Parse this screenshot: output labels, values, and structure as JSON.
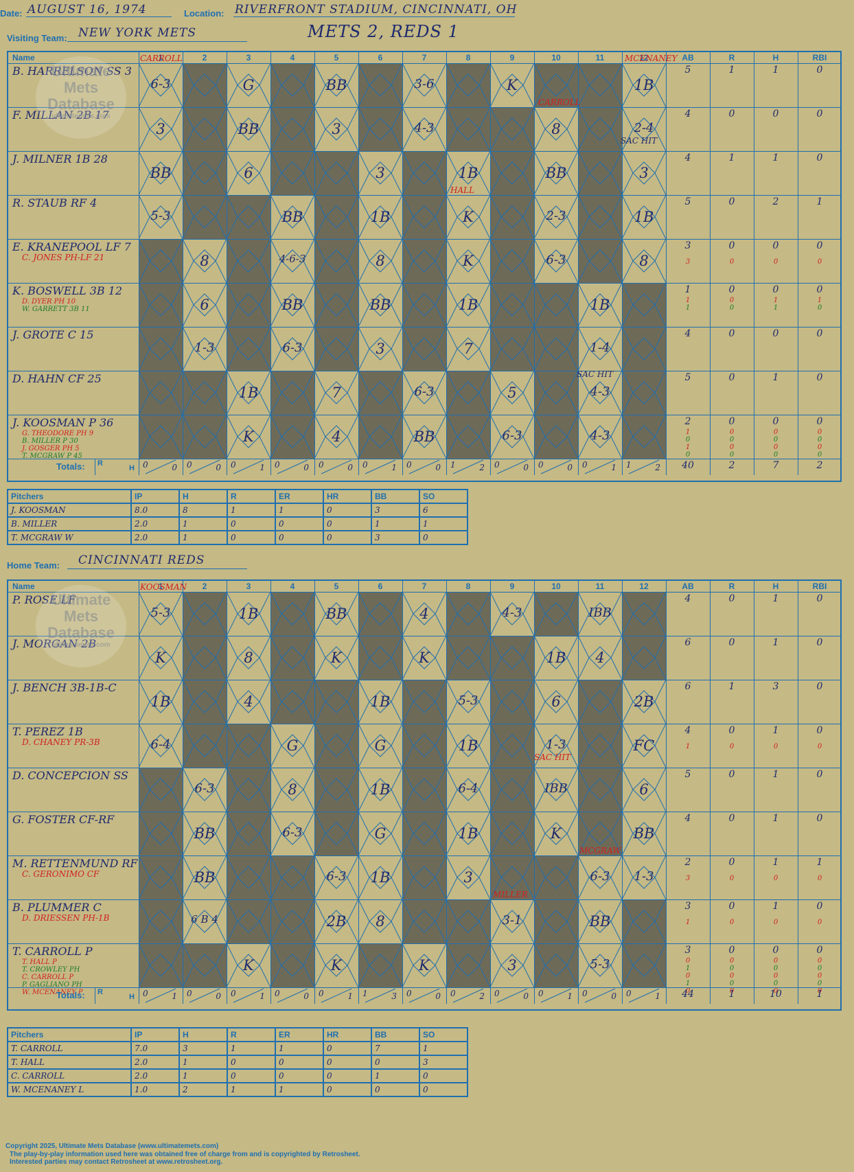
{
  "header": {
    "date_label": "Date:",
    "date": "AUGUST 16, 1974",
    "location_label": "Location:",
    "location": "RIVERFRONT STADIUM, CINCINNATI, OH",
    "visiting_label": "Visiting Team:",
    "visiting_team": "NEW YORK METS",
    "score_title": "METS 2, REDS 1",
    "home_label": "Home Team:",
    "home_team": "CINCINNATI REDS"
  },
  "watermark": {
    "line1": "Ultimate",
    "line2": "Mets",
    "line3": "Database",
    "url": "ultimatemets.com"
  },
  "columns": [
    "Name",
    "1",
    "2",
    "3",
    "4",
    "5",
    "6",
    "7",
    "8",
    "9",
    "10",
    "11",
    "12",
    "AB",
    "R",
    "H",
    "RBI"
  ],
  "totals_label": "Totals:",
  "totals_rh": [
    "R",
    "H"
  ],
  "visiting": {
    "players": [
      {
        "name": "B. HARRELSON SS 3",
        "subs": [],
        "marks": [
          "6-3",
          "",
          "G",
          "",
          "BB",
          "",
          "3-6",
          "",
          "K",
          "",
          "",
          "1B"
        ],
        "ab": [
          "5"
        ],
        "r": [
          "1"
        ],
        "h": [
          "1"
        ],
        "rbi": [
          "0"
        ]
      },
      {
        "name": "F. MILLAN 2B 17",
        "subs": [],
        "marks": [
          "3",
          "",
          "BB",
          "",
          "3",
          "",
          "4-3",
          "",
          "",
          "8",
          "",
          "2-4"
        ],
        "ab": [
          "4"
        ],
        "r": [
          "0"
        ],
        "h": [
          "0"
        ],
        "rbi": [
          "0"
        ]
      },
      {
        "name": "J. MILNER 1B 28",
        "subs": [],
        "marks": [
          "BB",
          "",
          "6",
          "",
          "",
          "3",
          "",
          "1B",
          "",
          "BB",
          "",
          "3"
        ],
        "ab": [
          "4"
        ],
        "r": [
          "1"
        ],
        "h": [
          "1"
        ],
        "rbi": [
          "0"
        ]
      },
      {
        "name": "R. STAUB RF 4",
        "subs": [],
        "marks": [
          "5-3",
          "",
          "",
          "BB",
          "",
          "1B",
          "",
          "K",
          "",
          "2-3",
          "",
          "1B"
        ],
        "ab": [
          "5"
        ],
        "r": [
          "0"
        ],
        "h": [
          "2"
        ],
        "rbi": [
          "1"
        ]
      },
      {
        "name": "E. KRANEPOOL LF 7",
        "subs": [
          "C. JONES PH-LF 21"
        ],
        "marks": [
          "",
          "8",
          "",
          "4-6-3",
          "",
          "8",
          "",
          "K",
          "",
          "6-3",
          "",
          "8"
        ],
        "ab": [
          "3",
          "3"
        ],
        "r": [
          "0",
          "0"
        ],
        "h": [
          "0",
          "0"
        ],
        "rbi": [
          "0",
          "0"
        ]
      },
      {
        "name": "K. BOSWELL 3B 12",
        "subs": [
          "D. DYER PH 10",
          "W. GARRETT 3B 11"
        ],
        "marks": [
          "",
          "6",
          "",
          "BB",
          "",
          "BB",
          "",
          "1B",
          "",
          "",
          "1B",
          ""
        ],
        "ab": [
          "1",
          "1",
          "1"
        ],
        "r": [
          "0",
          "0",
          "0"
        ],
        "h": [
          "0",
          "1",
          "1"
        ],
        "rbi": [
          "0",
          "1",
          "0"
        ]
      },
      {
        "name": "J. GROTE C 15",
        "subs": [],
        "marks": [
          "",
          "1-3",
          "",
          "6-3",
          "",
          "3",
          "",
          "7",
          "",
          "",
          "1-4",
          ""
        ],
        "ab": [
          "4"
        ],
        "r": [
          "0"
        ],
        "h": [
          "0"
        ],
        "rbi": [
          "0"
        ]
      },
      {
        "name": "D. HAHN CF 25",
        "subs": [],
        "marks": [
          "",
          "",
          "1B",
          "",
          "7",
          "",
          "6-3",
          "",
          "5",
          "",
          "4-3",
          ""
        ],
        "ab": [
          "5"
        ],
        "r": [
          "0"
        ],
        "h": [
          "1"
        ],
        "rbi": [
          "0"
        ]
      },
      {
        "name": "J. KOOSMAN P 36",
        "subs": [
          "G. THEODORE PH 9",
          "B. MILLER P 30",
          "J. GOSGER PH 5",
          "T. MCGRAW P 45"
        ],
        "marks": [
          "",
          "",
          "K",
          "",
          "4",
          "",
          "BB",
          "",
          "6-3",
          "",
          "4-3",
          ""
        ],
        "ab": [
          "2",
          "1",
          "0",
          "1",
          "0"
        ],
        "r": [
          "0",
          "0",
          "0",
          "0",
          "0"
        ],
        "h": [
          "0",
          "0",
          "0",
          "0",
          "0"
        ],
        "rbi": [
          "0",
          "0",
          "0",
          "0",
          "0"
        ]
      }
    ],
    "totals": [
      [
        "0",
        "0"
      ],
      [
        "0",
        "0"
      ],
      [
        "0",
        "1"
      ],
      [
        "0",
        "0"
      ],
      [
        "0",
        "0"
      ],
      [
        "0",
        "1"
      ],
      [
        "0",
        "0"
      ],
      [
        "1",
        "2"
      ],
      [
        "0",
        "0"
      ],
      [
        "0",
        "0"
      ],
      [
        "0",
        "1"
      ],
      [
        "1",
        "2"
      ]
    ],
    "totals_stats": [
      "40",
      "2",
      "7",
      "2"
    ],
    "pitchers_header": [
      "Pitchers",
      "IP",
      "H",
      "R",
      "ER",
      "HR",
      "BB",
      "SO"
    ],
    "pitchers": [
      [
        "J. KOOSMAN",
        "8.0",
        "8",
        "1",
        "1",
        "0",
        "3",
        "6"
      ],
      [
        "B. MILLER",
        "2.0",
        "1",
        "0",
        "0",
        "0",
        "1",
        "1"
      ],
      [
        "T. MCGRAW W",
        "2.0",
        "1",
        "0",
        "0",
        "0",
        "3",
        "0"
      ]
    ]
  },
  "home": {
    "players": [
      {
        "name": "P. ROSE LF",
        "subs": [],
        "marks": [
          "5-3",
          "",
          "1B",
          "",
          "BB",
          "",
          "4",
          "",
          "4-3",
          "",
          "IBB",
          ""
        ],
        "ab": [
          "4"
        ],
        "r": [
          "0"
        ],
        "h": [
          "1"
        ],
        "rbi": [
          "0"
        ]
      },
      {
        "name": "J. MORGAN 2B",
        "subs": [],
        "marks": [
          "K",
          "",
          "8",
          "",
          "K",
          "",
          "K",
          "",
          "",
          "1B",
          "4",
          ""
        ],
        "ab": [
          "6"
        ],
        "r": [
          "0"
        ],
        "h": [
          "1"
        ],
        "rbi": [
          "0"
        ]
      },
      {
        "name": "J. BENCH 3B-1B-C",
        "subs": [],
        "marks": [
          "1B",
          "",
          "4",
          "",
          "",
          "1B",
          "",
          "5-3",
          "",
          "6",
          "",
          "2B"
        ],
        "ab": [
          "6"
        ],
        "r": [
          "1"
        ],
        "h": [
          "3"
        ],
        "rbi": [
          "0"
        ]
      },
      {
        "name": "T. PEREZ 1B",
        "subs": [
          "D. CHANEY PR-3B"
        ],
        "marks": [
          "6-4",
          "",
          "",
          "G",
          "",
          "G",
          "",
          "1B",
          "",
          "1-3",
          "",
          "FC"
        ],
        "ab": [
          "4",
          "1"
        ],
        "r": [
          "0",
          "0"
        ],
        "h": [
          "1",
          "0"
        ],
        "rbi": [
          "0",
          "0"
        ]
      },
      {
        "name": "D. CONCEPCION SS",
        "subs": [],
        "marks": [
          "",
          "6-3",
          "",
          "8",
          "",
          "1B",
          "",
          "6-4",
          "",
          "IBB",
          "",
          "6"
        ],
        "ab": [
          "5"
        ],
        "r": [
          "0"
        ],
        "h": [
          "1"
        ],
        "rbi": [
          "0"
        ]
      },
      {
        "name": "G. FOSTER CF-RF",
        "subs": [],
        "marks": [
          "",
          "BB",
          "",
          "6-3",
          "",
          "G",
          "",
          "1B",
          "",
          "K",
          "",
          "BB"
        ],
        "ab": [
          "4"
        ],
        "r": [
          "0"
        ],
        "h": [
          "1"
        ],
        "rbi": [
          "0"
        ]
      },
      {
        "name": "M. RETTENMUND RF",
        "subs": [
          "C. GERONIMO CF"
        ],
        "marks": [
          "",
          "BB",
          "",
          "",
          "6-3",
          "1B",
          "",
          "3",
          "",
          "",
          "6-3",
          "1-3"
        ],
        "ab": [
          "2",
          "3"
        ],
        "r": [
          "0",
          "0"
        ],
        "h": [
          "1",
          "0"
        ],
        "rbi": [
          "1",
          "0"
        ]
      },
      {
        "name": "B. PLUMMER C",
        "subs": [
          "D. DRIESSEN PH-1B"
        ],
        "marks": [
          "",
          "6 B 4",
          "",
          "",
          "2B",
          "8",
          "",
          "",
          "3-1",
          "",
          "BB",
          ""
        ],
        "ab": [
          "3",
          "1"
        ],
        "r": [
          "0",
          "0"
        ],
        "h": [
          "1",
          "0"
        ],
        "rbi": [
          "0",
          "0"
        ]
      },
      {
        "name": "T. CARROLL P",
        "subs": [
          "T. HALL P",
          "T. CROWLEY PH",
          "C. CARROLL P",
          "P. GAGLIANO PH",
          "W. MCENANEY P"
        ],
        "marks": [
          "",
          "",
          "K",
          "",
          "K",
          "",
          "K",
          "",
          "3",
          "",
          "5-3",
          ""
        ],
        "ab": [
          "3",
          "0",
          "1",
          "0",
          "1",
          "0"
        ],
        "r": [
          "0",
          "0",
          "0",
          "0",
          "0",
          "0"
        ],
        "h": [
          "0",
          "0",
          "0",
          "0",
          "0",
          "0"
        ],
        "rbi": [
          "0",
          "0",
          "0",
          "0",
          "0",
          "0"
        ]
      }
    ],
    "totals": [
      [
        "0",
        "1"
      ],
      [
        "0",
        "0"
      ],
      [
        "0",
        "1"
      ],
      [
        "0",
        "0"
      ],
      [
        "0",
        "1"
      ],
      [
        "1",
        "3"
      ],
      [
        "0",
        "0"
      ],
      [
        "0",
        "2"
      ],
      [
        "0",
        "0"
      ],
      [
        "0",
        "1"
      ],
      [
        "0",
        "0"
      ],
      [
        "0",
        "1"
      ]
    ],
    "totals_stats": [
      "44",
      "1",
      "10",
      "1"
    ],
    "pitchers_header": [
      "Pitchers",
      "IP",
      "H",
      "R",
      "ER",
      "HR",
      "BB",
      "SO"
    ],
    "pitchers": [
      [
        "T. CARROLL",
        "7.0",
        "3",
        "1",
        "1",
        "0",
        "7",
        "1"
      ],
      [
        "T. HALL",
        "2.0",
        "1",
        "0",
        "0",
        "0",
        "0",
        "3"
      ],
      [
        "C. CARROLL",
        "2.0",
        "1",
        "0",
        "0",
        "0",
        "1",
        "0"
      ],
      [
        "W. MCENANEY L",
        "1.0",
        "2",
        "1",
        "1",
        "0",
        "0",
        "0"
      ]
    ]
  },
  "annotations": {
    "v_carroll_1": "CARROLL",
    "v_mcenaney": "MCENANEY",
    "v_carroll_10": "CARROLL",
    "v_hall": "HALL",
    "v_sac1": "SAC HIT",
    "v_sac2": "SAC HIT",
    "h_koosman": "KOOSMAN",
    "h_mcgraw": "MCGRAW",
    "h_miller": "MILLER",
    "h_sac": "SAC HIT"
  },
  "footer": {
    "line1": "Copyright 2025, Ultimate Mets Database (www.ultimatemets.com)",
    "line2": "The play-by-play information used here was obtained free of charge from and is copyrighted by Retrosheet.",
    "line3": "Interested parties may contact Retrosheet at www.retrosheet.org."
  },
  "colors": {
    "background": "#c5b985",
    "grid": "#1f6fb0",
    "ink": "#1e2a6e",
    "grey_cell": "#6e6a58",
    "red_ink": "#d0201e",
    "green_ink": "#1e7a2e"
  }
}
